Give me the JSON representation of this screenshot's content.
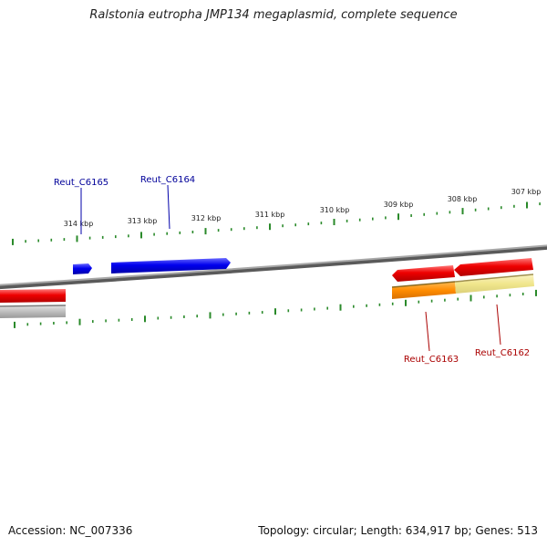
{
  "title": "Ralstonia eutropha JMP134 megaplasmid, complete sequence",
  "footer": {
    "accession": "Accession: NC_007336",
    "summary": "Topology: circular; Length: 634,917 bp; Genes: 513"
  },
  "colors": {
    "background": "#ffffff",
    "backbone": "#808080",
    "tick": "#2a8a2a",
    "forward_gene": "#0000ee",
    "reverse_gene": "#ee0000",
    "forward_label": "#000099",
    "reverse_label": "#aa0000",
    "orange_feature": "#ff8c00",
    "khaki_feature": "#f0e68c",
    "gray_feature": "#b0b0b0"
  },
  "scale": {
    "unit": "kbp",
    "labels": [
      {
        "kbp": 314,
        "text": "314 kbp"
      },
      {
        "kbp": 313,
        "text": "313 kbp"
      },
      {
        "kbp": 312,
        "text": "312 kbp"
      },
      {
        "kbp": 311,
        "text": "311 kbp"
      },
      {
        "kbp": 310,
        "text": "310 kbp"
      },
      {
        "kbp": 309,
        "text": "309 kbp"
      },
      {
        "kbp": 308,
        "text": "308 kbp"
      },
      {
        "kbp": 307,
        "text": "307 kbp"
      }
    ]
  },
  "genes": [
    {
      "label": "Reut_C6165",
      "strand": "+"
    },
    {
      "label": "Reut_C6164",
      "strand": "+"
    },
    {
      "label": "Reut_C6163",
      "strand": "-"
    },
    {
      "label": "Reut_C6162",
      "strand": "-"
    }
  ]
}
